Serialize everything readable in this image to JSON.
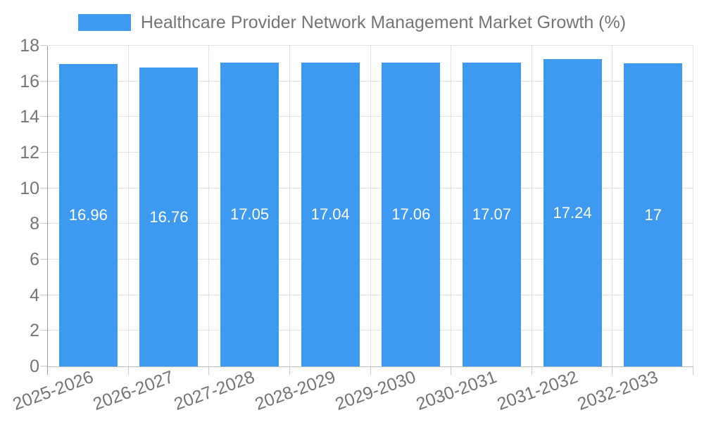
{
  "chart_data": {
    "type": "bar",
    "title": "Healthcare Provider Network Management Market Growth (%)",
    "legend_position": "top",
    "categories": [
      "2025-2026",
      "2026-2027",
      "2027-2028",
      "2028-2029",
      "2029-2030",
      "2030-2031",
      "2031-2032",
      "2032-2033"
    ],
    "series": [
      {
        "name": "Healthcare Provider Network Management Market Growth (%)",
        "values": [
          16.96,
          16.76,
          17.05,
          17.04,
          17.06,
          17.07,
          17.24,
          17
        ],
        "value_labels": [
          "16.96",
          "16.76",
          "17.05",
          "17.04",
          "17.06",
          "17.07",
          "17.24",
          "17"
        ]
      }
    ],
    "xlabel": "",
    "ylabel": "",
    "ylim": [
      0,
      18
    ],
    "ytick_labels": [
      "0",
      "2",
      "4",
      "6",
      "8",
      "10",
      "12",
      "14",
      "16",
      "18"
    ],
    "yticks": [
      0,
      2,
      4,
      6,
      8,
      10,
      12,
      14,
      16,
      18
    ],
    "grid": true,
    "x_label_rotation_deg": -20,
    "colors": {
      "bar": "#3E9AF0",
      "bar_value_text": "#ffffff",
      "axis_text": "#757575",
      "legend_text": "#757575",
      "gridline": "#E2E2E2",
      "tick_mark": "#C9C9C9",
      "y_axis_line": "#9E9E9E",
      "x_axis_line": "#BDBDBD"
    }
  }
}
